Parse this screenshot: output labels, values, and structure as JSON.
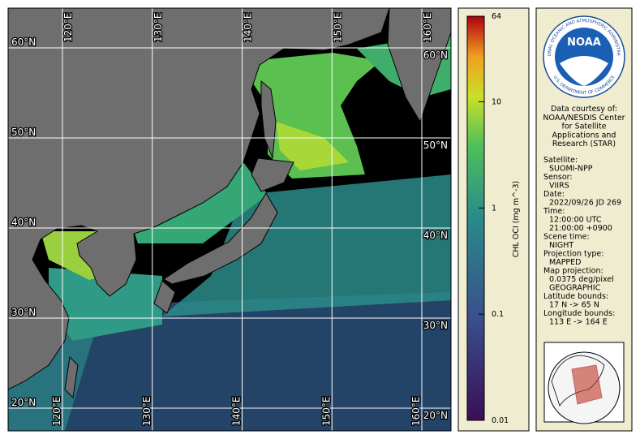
{
  "map": {
    "lon_ticks": [
      {
        "value": 120,
        "label": "120°E"
      },
      {
        "value": 130,
        "label": "130°E"
      },
      {
        "value": 140,
        "label": "140°E"
      },
      {
        "value": 150,
        "label": "150°E"
      },
      {
        "value": 160,
        "label": "160°E"
      }
    ],
    "lat_ticks": [
      {
        "value": 60,
        "label": "60°N"
      },
      {
        "value": 50,
        "label": "50°N"
      },
      {
        "value": 40,
        "label": "40°N"
      },
      {
        "value": 30,
        "label": "30°N"
      },
      {
        "value": 20,
        "label": "20°N"
      }
    ]
  },
  "colorbar": {
    "label": "CHL OCI (mg m^-3)",
    "scale": "log",
    "lim": [
      0.01,
      64
    ],
    "ticks": [
      64,
      10,
      1,
      0.1,
      0.01
    ]
  },
  "logo": {
    "name": "NOAA",
    "ring_top": "NATIONAL OCEANIC AND ATMOSPHERIC ADMINISTRATION",
    "ring_bottom": "U.S. DEPARTMENT OF COMMERCE"
  },
  "credit": [
    "Data courtesy of:",
    "NOAA/NESDIS Center",
    "for Satellite",
    "Applications and",
    "Research (STAR)"
  ],
  "info": [
    {
      "label": "Satellite:",
      "values": [
        "SUOMI-NPP"
      ]
    },
    {
      "label": "Sensor:",
      "values": [
        "VIIRS"
      ]
    },
    {
      "label": "Date:",
      "values": [
        "2022/09/26 JD 269"
      ]
    },
    {
      "label": "Time:",
      "values": [
        "12:00:00 UTC",
        "21:00:00 +0900"
      ]
    },
    {
      "label": "Scene time:",
      "values": [
        "NIGHT"
      ]
    },
    {
      "label": "Projection type:",
      "values": [
        "MAPPED"
      ]
    },
    {
      "label": "Map projection:",
      "values": [
        "0.0375 deg/pixel",
        "GEOGRAPHIC"
      ]
    },
    {
      "label": "Latitude bounds:",
      "values": [
        "17 N -> 65 N"
      ]
    },
    {
      "label": "Longitude bounds:",
      "values": [
        "113 E -> 164 E"
      ]
    }
  ]
}
